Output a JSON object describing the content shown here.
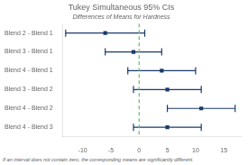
{
  "chart_data": {
    "type": "interval",
    "title": "Tukey Simultaneous 95% CIs",
    "subtitle": "Differences of Means for Hardness",
    "footnote": "If an interval does not contain zero, the corresponding means are significantly different.",
    "orientation": "horizontal",
    "categories": [
      "Blend 2 - Blend 1",
      "Blend 3 - Blend 1",
      "Blend 4 - Blend 1",
      "Blend 3 - Blend 2",
      "Blend 4 - Blend 2",
      "Blend 4 - Blend 3"
    ],
    "values": [
      -6,
      -1,
      4,
      5,
      11,
      5
    ],
    "lower": [
      -13,
      -6,
      -2,
      -1,
      5,
      -1
    ],
    "upper": [
      1,
      4,
      10,
      11,
      17,
      11
    ],
    "color": "#1a3a6b",
    "marker": "square",
    "xlim": [
      -13.5,
      18
    ],
    "xticks": [
      -10,
      -5,
      0,
      5,
      10,
      15
    ],
    "grid": false,
    "reference_lines": [
      {
        "x": 0,
        "color": "#66bb66",
        "line_style": "dashed"
      }
    ]
  }
}
